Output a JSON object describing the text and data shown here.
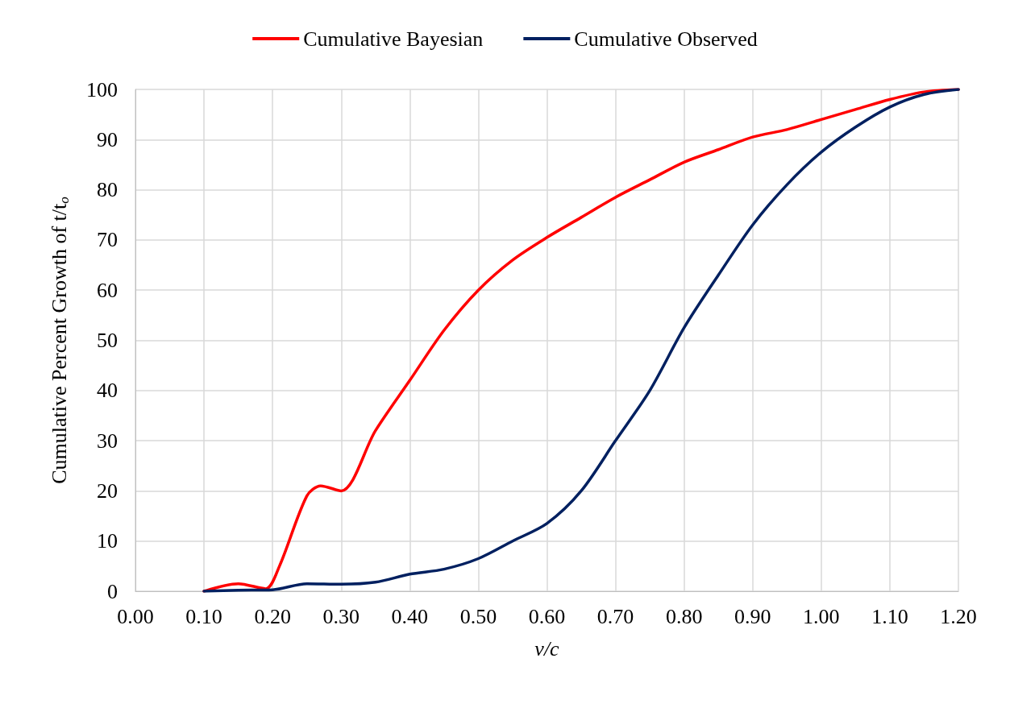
{
  "chart_data": {
    "type": "line",
    "xlabel": "v/c",
    "ylabel": "Cumulative Percent Growth of t/t$_{o}$",
    "legend": "top",
    "grid": true,
    "marker": "none",
    "line_style": "solid",
    "xlim": [
      0,
      1.2
    ],
    "xticks": [
      {
        "value": 0,
        "label": "0.00"
      },
      {
        "value": 0.1,
        "label": "0.10"
      },
      {
        "value": 0.2,
        "label": "0.20"
      },
      {
        "value": 0.3,
        "label": "0.30"
      },
      {
        "value": 0.4,
        "label": "0.40"
      },
      {
        "value": 0.5,
        "label": "0.50"
      },
      {
        "value": 0.6,
        "label": "0.60"
      },
      {
        "value": 0.7,
        "label": "0.70"
      },
      {
        "value": 0.8,
        "label": "0.80"
      },
      {
        "value": 0.9,
        "label": "0.90"
      },
      {
        "value": 1,
        "label": "1.00"
      },
      {
        "value": 1.1,
        "label": "1.10"
      },
      {
        "value": 1.2,
        "label": "1.20"
      }
    ],
    "ylim": [
      0,
      100
    ],
    "yticks": [
      0,
      10,
      20,
      30,
      40,
      50,
      60,
      70,
      80,
      90,
      100
    ],
    "series": [
      {
        "name": "Cumulative Bayesian",
        "color": "#ff0000",
        "x": [
          0.1,
          0.15,
          0.19,
          0.21,
          0.25,
          0.27,
          0.3,
          0.35,
          0.4,
          0.45,
          0.5,
          0.55,
          0.6,
          0.65,
          0.7,
          0.75,
          0.8,
          0.85,
          0.9,
          0.95,
          1.0,
          1.05,
          1.1,
          1.15,
          1.2
        ],
        "values": [
          0,
          1.5,
          0.5,
          5,
          19,
          21,
          20,
          32,
          42,
          52,
          60,
          66,
          70.5,
          74.5,
          78.5,
          82,
          85.5,
          88,
          90.5,
          92,
          94,
          96,
          98,
          99.5,
          100
        ]
      },
      {
        "name": "Cumulative Observed",
        "color": "#002060",
        "x": [
          0.1,
          0.15,
          0.2,
          0.25,
          0.3,
          0.35,
          0.4,
          0.45,
          0.5,
          0.55,
          0.6,
          0.65,
          0.7,
          0.75,
          0.8,
          0.85,
          0.9,
          0.95,
          1.0,
          1.05,
          1.1,
          1.15,
          1.2
        ],
        "values": [
          0,
          0.2,
          0.3,
          1.5,
          1.4,
          1.8,
          3.4,
          4.4,
          6.5,
          10,
          13.5,
          20,
          30,
          40,
          52.5,
          63,
          73,
          81,
          87.5,
          92.5,
          96.5,
          99,
          100
        ]
      }
    ]
  }
}
